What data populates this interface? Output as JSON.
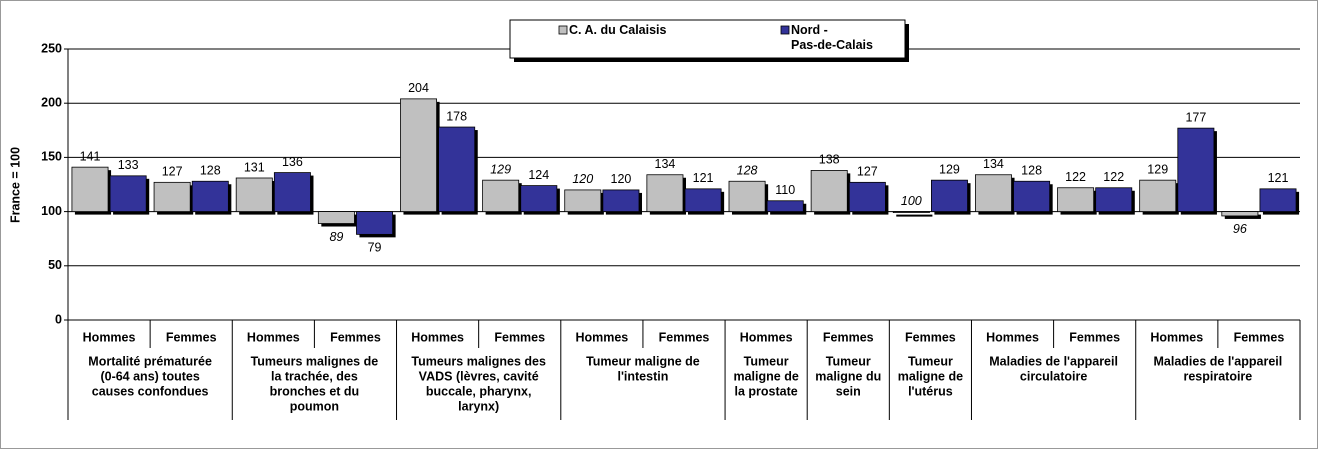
{
  "chart_data": {
    "type": "bar",
    "baseline": 100,
    "ylabel": "France = 100",
    "ylim": [
      0,
      250
    ],
    "yticks": [
      0,
      50,
      100,
      150,
      200,
      250
    ],
    "grid": true,
    "groups": [
      {
        "lines": [
          "Mortalité prématurée",
          "(0-64 ans) toutes",
          "causes confondues"
        ],
        "categories": [
          "Hommes",
          "Femmes"
        ]
      },
      {
        "lines": [
          "Tumeurs malignes de",
          "la trachée, des",
          "bronches et du",
          "poumon"
        ],
        "categories": [
          "Hommes",
          "Femmes"
        ]
      },
      {
        "lines": [
          "Tumeurs malignes des",
          "VADS (lèvres, cavité",
          "buccale, pharynx,",
          "larynx)"
        ],
        "categories": [
          "Hommes",
          "Femmes"
        ]
      },
      {
        "lines": [
          "Tumeur maligne de",
          "l'intestin"
        ],
        "categories": [
          "Hommes",
          "Femmes"
        ]
      },
      {
        "lines": [
          "Tumeur",
          "maligne de",
          "la prostate"
        ],
        "categories": [
          "Hommes"
        ]
      },
      {
        "lines": [
          "Tumeur",
          "maligne du",
          "sein"
        ],
        "categories": [
          "Femmes"
        ]
      },
      {
        "lines": [
          "Tumeur",
          "maligne de",
          "l'utérus"
        ],
        "categories": [
          "Femmes"
        ]
      },
      {
        "lines": [
          "Maladies de l'appareil",
          "circulatoire"
        ],
        "categories": [
          "Hommes",
          "Femmes"
        ]
      },
      {
        "lines": [
          "Maladies de l'appareil",
          "respiratoire"
        ],
        "categories": [
          "Hommes",
          "Femmes"
        ]
      }
    ],
    "series": [
      {
        "name": "C. A. du Calaisis",
        "color": "#c0c0c0",
        "values": [
          141,
          127,
          131,
          89,
          204,
          129,
          120,
          134,
          128,
          138,
          100,
          134,
          122,
          129,
          96
        ],
        "italic": [
          false,
          false,
          false,
          true,
          false,
          true,
          true,
          false,
          true,
          false,
          true,
          false,
          false,
          false,
          true
        ]
      },
      {
        "name": "Nord -\nPas-de-Calais",
        "color": "#333399",
        "values": [
          133,
          128,
          136,
          79,
          178,
          124,
          120,
          121,
          110,
          127,
          129,
          128,
          122,
          177,
          121
        ],
        "italic": [
          false,
          false,
          false,
          false,
          false,
          false,
          false,
          false,
          false,
          false,
          false,
          false,
          false,
          false,
          false
        ]
      }
    ]
  }
}
